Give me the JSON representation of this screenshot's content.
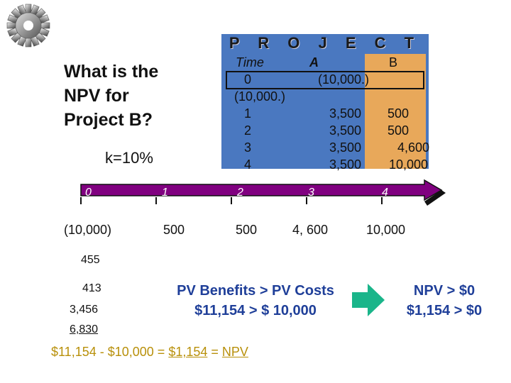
{
  "project_table": {
    "title": "P R O J E C T",
    "headers": {
      "time": "Time",
      "a": "A",
      "b": "B"
    },
    "rows": [
      {
        "time": "0",
        "a": "(10,000.)",
        "b": "(10,000.)"
      },
      {
        "time": "1",
        "a": "3,500",
        "b": "500"
      },
      {
        "time": "2",
        "a": "3,500",
        "b": "500"
      },
      {
        "time": "3",
        "a": "3,500",
        "b": "4,600"
      },
      {
        "time": "4",
        "a": "3,500",
        "b": "10,000"
      }
    ]
  },
  "question": {
    "line1": "What is the",
    "line2": "NPV for",
    "line3": "Project B?"
  },
  "rate": "k=10%",
  "timeline": {
    "ticks": [
      "0",
      "1",
      "2",
      "3",
      "4"
    ],
    "cash_flows": [
      "(10,000)",
      "500",
      "500",
      "4, 600",
      "10,000"
    ]
  },
  "present_values": [
    "455",
    "413",
    "3,456",
    "6,830"
  ],
  "comparison": {
    "line1": "PV Benefits > PV Costs",
    "line2": "$11,154 > $ 10,000"
  },
  "conclusion": {
    "line1": "NPV > $0",
    "line2": "$1,154 > $0"
  },
  "calculation": {
    "prefix": "$11,154 - $10,000 = ",
    "value": "$1,154",
    "equals": " = ",
    "label": "NPV"
  },
  "colors": {
    "table_bg": "#4a78c0",
    "highlight_column": "#e8a85a",
    "timeline": "#800080",
    "arrow": "#1ab58a",
    "emphasis_text": "#1f3f99",
    "calc_text": "#b8900a"
  }
}
